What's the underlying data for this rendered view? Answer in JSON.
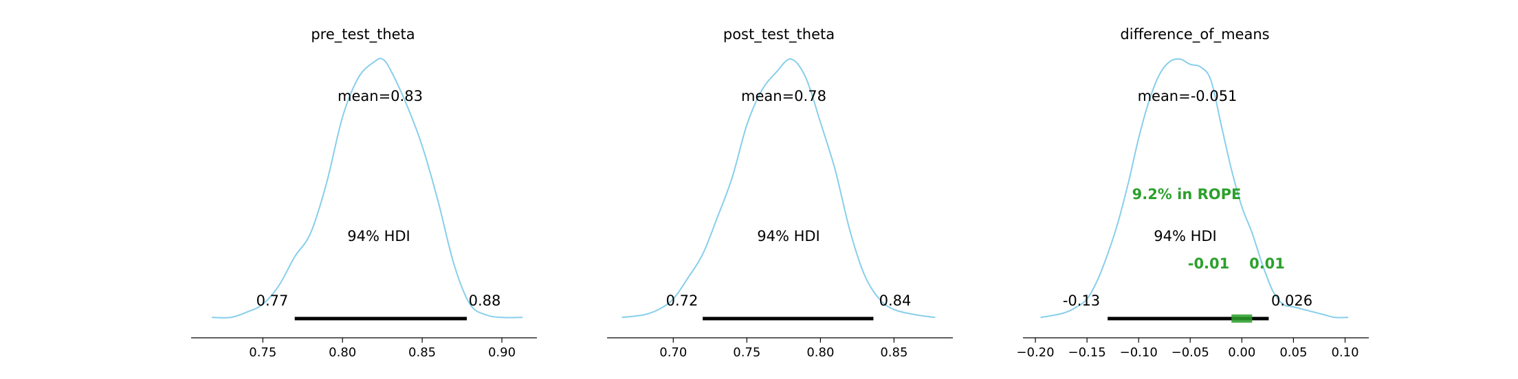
{
  "figure": {
    "panels": [
      {
        "title": "pre_test_theta",
        "mean_label": "mean=0.83",
        "hdi_label": "94% HDI",
        "hdi_low_label": "0.77",
        "hdi_high_label": "0.88",
        "tick_labels": [
          "0.75",
          "0.80",
          "0.85",
          "0.90"
        ]
      },
      {
        "title": "post_test_theta",
        "mean_label": "mean=0.78",
        "hdi_label": "94% HDI",
        "hdi_low_label": "0.72",
        "hdi_high_label": "0.84",
        "tick_labels": [
          "0.70",
          "0.75",
          "0.80",
          "0.85"
        ]
      },
      {
        "title": "difference_of_means",
        "mean_label": "mean=-0.051",
        "hdi_label": "94% HDI",
        "hdi_low_label": "-0.13",
        "hdi_high_label": "0.026",
        "tick_labels": [
          "−0.20",
          "−0.15",
          "−0.10",
          "−0.05",
          "0.00",
          "0.05",
          "0.10"
        ],
        "rope_label": "9.2% in ROPE",
        "rope_low_label": "-0.01",
        "rope_high_label": "0.01"
      }
    ]
  },
  "chart_data": [
    {
      "type": "area",
      "title": "pre_test_theta",
      "xlim": [
        0.705,
        0.922
      ],
      "ticks": [
        0.75,
        0.8,
        0.85,
        0.9
      ],
      "mean": 0.83,
      "hdi_prob": 0.94,
      "hdi": [
        0.77,
        0.878
      ],
      "density_x": [
        0.718,
        0.73,
        0.74,
        0.75,
        0.76,
        0.77,
        0.78,
        0.79,
        0.8,
        0.81,
        0.82,
        0.825,
        0.83,
        0.84,
        0.85,
        0.86,
        0.87,
        0.88,
        0.89,
        0.9,
        0.913
      ],
      "density_y": [
        0.02,
        0.02,
        0.04,
        0.07,
        0.14,
        0.25,
        0.34,
        0.53,
        0.78,
        0.93,
        0.99,
        1.0,
        0.96,
        0.83,
        0.67,
        0.46,
        0.22,
        0.07,
        0.03,
        0.02,
        0.02
      ],
      "color": "#87ceeb"
    },
    {
      "type": "area",
      "title": "post_test_theta",
      "xlim": [
        0.655,
        0.89
      ],
      "ticks": [
        0.7,
        0.75,
        0.8,
        0.85
      ],
      "mean": 0.78,
      "hdi_prob": 0.94,
      "hdi": [
        0.72,
        0.836
      ],
      "density_x": [
        0.665,
        0.68,
        0.69,
        0.7,
        0.71,
        0.72,
        0.73,
        0.74,
        0.75,
        0.76,
        0.77,
        0.78,
        0.79,
        0.8,
        0.81,
        0.82,
        0.83,
        0.84,
        0.85,
        0.865,
        0.878
      ],
      "density_y": [
        0.02,
        0.03,
        0.05,
        0.09,
        0.17,
        0.26,
        0.4,
        0.55,
        0.75,
        0.88,
        0.95,
        1.0,
        0.93,
        0.76,
        0.58,
        0.35,
        0.18,
        0.09,
        0.05,
        0.03,
        0.02
      ],
      "color": "#87ceeb"
    },
    {
      "type": "area",
      "title": "difference_of_means",
      "xlim": [
        -0.212,
        0.123
      ],
      "ticks": [
        -0.2,
        -0.15,
        -0.1,
        -0.05,
        0.0,
        0.05,
        0.1
      ],
      "mean": -0.051,
      "hdi_prob": 0.94,
      "hdi": [
        -0.13,
        0.026
      ],
      "rope": [
        -0.01,
        0.01
      ],
      "rope_pct": 9.2,
      "density_x": [
        -0.195,
        -0.18,
        -0.17,
        -0.16,
        -0.15,
        -0.14,
        -0.13,
        -0.12,
        -0.11,
        -0.1,
        -0.09,
        -0.08,
        -0.07,
        -0.06,
        -0.05,
        -0.04,
        -0.03,
        -0.02,
        -0.01,
        0.0,
        0.01,
        0.02,
        0.03,
        0.04,
        0.05,
        0.06,
        0.07,
        0.08,
        0.09,
        0.103
      ],
      "density_y": [
        0.02,
        0.03,
        0.04,
        0.06,
        0.09,
        0.16,
        0.26,
        0.38,
        0.53,
        0.7,
        0.84,
        0.94,
        0.99,
        1.0,
        0.98,
        0.97,
        0.92,
        0.75,
        0.58,
        0.44,
        0.34,
        0.22,
        0.12,
        0.07,
        0.06,
        0.05,
        0.04,
        0.03,
        0.02,
        0.02
      ],
      "color": "#87ceeb",
      "rope_color": "#2ca02c"
    }
  ]
}
